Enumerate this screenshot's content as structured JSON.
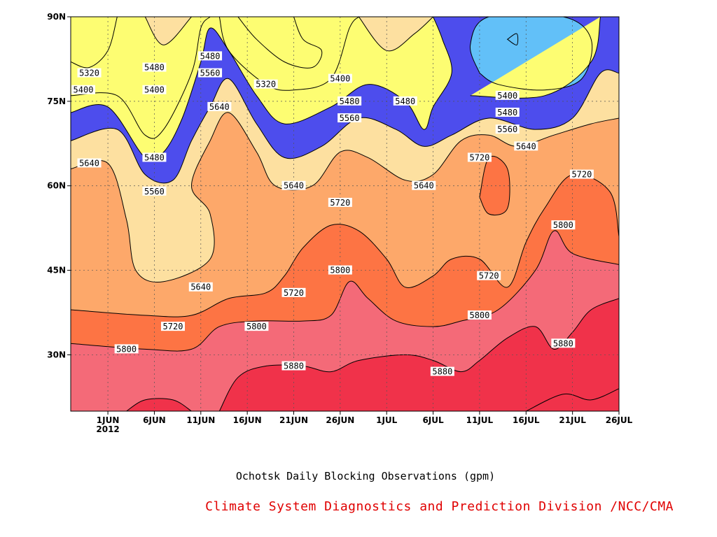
{
  "caption": "Ochotsk Daily Blocking Observations (gpm)",
  "credit": "Climate System Diagnostics and Prediction Division /NCC/CMA",
  "credit_color": "#e00000",
  "chart_data": {
    "type": "heatmap",
    "subtype": "filled-contour",
    "title": "",
    "xlabel": "",
    "ylabel": "",
    "x_ticks": [
      "1JUN\n2012",
      "6JUN",
      "11JUN",
      "16JUN",
      "21JUN",
      "26JUN",
      "1JUL",
      "6JUL",
      "11JUL",
      "16JUL",
      "21JUL",
      "26JUL"
    ],
    "y_ticks": [
      "30N",
      "45N",
      "60N",
      "75N",
      "90N"
    ],
    "xlim": [
      "2012-05-28",
      "2012-07-26"
    ],
    "ylim": [
      20,
      90
    ],
    "grid": true,
    "contour_levels": [
      5320,
      5400,
      5480,
      5560,
      5640,
      5720,
      5800,
      5880
    ],
    "fill_colors": [
      "#4d4ded",
      "#5a8fe6",
      "#62c0f8",
      "#fdfd72",
      "#fde0a0",
      "#fda86a",
      "#fd7444",
      "#f46a78",
      "#f0324a"
    ],
    "boundaries": [
      {
        "level": 5320,
        "points": [
          [
            "2012-05-28",
            82
          ],
          [
            "2012-05-30",
            81
          ],
          [
            "2012-06-01",
            84
          ],
          [
            "2012-06-02",
            90
          ]
        ]
      },
      {
        "level": 5320,
        "points": [
          [
            "2012-06-15",
            90
          ],
          [
            "2012-06-17",
            86
          ],
          [
            "2012-06-20",
            82
          ],
          [
            "2012-06-23",
            81
          ],
          [
            "2012-06-24",
            84
          ],
          [
            "2012-06-22",
            86
          ],
          [
            "2012-06-21",
            90
          ]
        ]
      },
      {
        "level": 5320,
        "points": [
          [
            "2012-07-14",
            86
          ],
          [
            "2012-07-15",
            85
          ],
          [
            "2012-07-15",
            87
          ],
          [
            "2012-07-14",
            86
          ]
        ]
      },
      {
        "level": 5400,
        "points": [
          [
            "2012-05-28",
            76
          ],
          [
            "2012-06-02",
            76
          ],
          [
            "2012-06-05",
            69
          ],
          [
            "2012-06-07",
            70
          ],
          [
            "2012-06-10",
            80
          ],
          [
            "2012-06-11",
            88
          ],
          [
            "2012-06-12",
            90
          ]
        ]
      },
      {
        "level": 5400,
        "points": [
          [
            "2012-06-13",
            90
          ],
          [
            "2012-06-14",
            84
          ],
          [
            "2012-06-18",
            78
          ],
          [
            "2012-06-21",
            77
          ],
          [
            "2012-06-25",
            79
          ],
          [
            "2012-06-27",
            88
          ],
          [
            "2012-06-28",
            90
          ]
        ]
      },
      {
        "level": 5400,
        "points": [
          [
            "2012-07-11",
            80
          ],
          [
            "2012-07-10",
            85
          ],
          [
            "2012-07-12",
            90
          ],
          [
            "2012-07-20",
            90
          ],
          [
            "2012-07-23",
            86
          ],
          [
            "2012-07-22",
            79
          ],
          [
            "2012-07-18",
            77
          ],
          [
            "2012-07-13",
            78
          ],
          [
            "2012-07-11",
            80
          ]
        ]
      },
      {
        "level": 5480,
        "points": [
          [
            "2012-05-28",
            73
          ],
          [
            "2012-06-01",
            74
          ],
          [
            "2012-06-05",
            65
          ],
          [
            "2012-06-07",
            66
          ],
          [
            "2012-06-09",
            72
          ],
          [
            "2012-06-11",
            82
          ],
          [
            "2012-06-12",
            88
          ],
          [
            "2012-06-14",
            84
          ],
          [
            "2012-06-17",
            76
          ],
          [
            "2012-06-20",
            71
          ],
          [
            "2012-06-25",
            74
          ],
          [
            "2012-06-29",
            78
          ],
          [
            "2012-07-03",
            75
          ],
          [
            "2012-07-05",
            70
          ],
          [
            "2012-07-06",
            74
          ],
          [
            "2012-07-08",
            80
          ],
          [
            "2012-07-07",
            86
          ],
          [
            "2012-07-06",
            90
          ]
        ]
      },
      {
        "level": 5480,
        "points": [
          [
            "2012-07-24",
            90
          ],
          [
            "2012-07-23",
            82
          ],
          [
            "2012-07-18",
            76
          ],
          [
            "2012-07-10",
            76
          ]
        ]
      },
      {
        "level": 5560,
        "points": [
          [
            "2012-05-28",
            68
          ],
          [
            "2012-06-02",
            70
          ],
          [
            "2012-06-05",
            62
          ],
          [
            "2012-06-08",
            61
          ],
          [
            "2012-06-10",
            68
          ],
          [
            "2012-06-12",
            74
          ],
          [
            "2012-06-14",
            79
          ],
          [
            "2012-06-17",
            71
          ],
          [
            "2012-06-20",
            65
          ],
          [
            "2012-06-24",
            67
          ],
          [
            "2012-06-28",
            72
          ],
          [
            "2012-07-02",
            70
          ],
          [
            "2012-07-05",
            67
          ],
          [
            "2012-07-08",
            69
          ],
          [
            "2012-07-12",
            72
          ],
          [
            "2012-07-17",
            70
          ],
          [
            "2012-07-21",
            72
          ],
          [
            "2012-07-24",
            80
          ],
          [
            "2012-07-26",
            80
          ]
        ]
      },
      {
        "level": 5560,
        "points": [
          [
            "2012-06-05",
            90
          ],
          [
            "2012-06-07",
            85
          ],
          [
            "2012-06-10",
            90
          ]
        ]
      },
      {
        "level": 5560,
        "points": [
          [
            "2012-06-28",
            90
          ],
          [
            "2012-07-01",
            84
          ],
          [
            "2012-07-04",
            87
          ],
          [
            "2012-07-06",
            90
          ]
        ]
      },
      {
        "level": 5640,
        "points": [
          [
            "2012-05-28",
            63
          ],
          [
            "2012-06-01",
            64
          ],
          [
            "2012-06-03",
            54
          ],
          [
            "2012-06-04",
            45
          ],
          [
            "2012-06-07",
            43
          ],
          [
            "2012-06-12",
            47
          ],
          [
            "2012-06-12",
            55
          ],
          [
            "2012-06-10",
            60
          ],
          [
            "2012-06-12",
            68
          ],
          [
            "2012-06-14",
            73
          ],
          [
            "2012-06-17",
            66
          ],
          [
            "2012-06-19",
            60
          ],
          [
            "2012-06-23",
            60
          ],
          [
            "2012-06-26",
            66
          ],
          [
            "2012-06-29",
            65
          ],
          [
            "2012-07-03",
            61
          ],
          [
            "2012-07-06",
            62
          ],
          [
            "2012-07-09",
            68
          ],
          [
            "2012-07-12",
            69
          ],
          [
            "2012-07-15",
            67
          ],
          [
            "2012-07-19",
            69
          ],
          [
            "2012-07-23",
            71
          ],
          [
            "2012-07-26",
            72
          ]
        ]
      },
      {
        "level": 5720,
        "points": [
          [
            "2012-05-28",
            38
          ],
          [
            "2012-06-05",
            37
          ],
          [
            "2012-06-10",
            37
          ],
          [
            "2012-06-14",
            40
          ],
          [
            "2012-06-18",
            41
          ],
          [
            "2012-06-20",
            44
          ],
          [
            "2012-06-22",
            49
          ],
          [
            "2012-06-25",
            53
          ],
          [
            "2012-06-28",
            52
          ],
          [
            "2012-07-01",
            47
          ],
          [
            "2012-07-03",
            42
          ],
          [
            "2012-07-06",
            44
          ],
          [
            "2012-07-08",
            47
          ],
          [
            "2012-07-11",
            47
          ],
          [
            "2012-07-14",
            42
          ],
          [
            "2012-07-16",
            50
          ],
          [
            "2012-07-18",
            56
          ],
          [
            "2012-07-21",
            62
          ],
          [
            "2012-07-25",
            59
          ],
          [
            "2012-07-26",
            51
          ]
        ]
      },
      {
        "level": 5720,
        "points": [
          [
            "2012-07-11",
            58
          ],
          [
            "2012-07-12",
            65
          ],
          [
            "2012-07-14",
            63
          ],
          [
            "2012-07-14",
            56
          ],
          [
            "2012-07-12",
            55
          ],
          [
            "2012-07-11",
            58
          ]
        ]
      },
      {
        "level": 5800,
        "points": [
          [
            "2012-05-28",
            32
          ],
          [
            "2012-06-05",
            31
          ],
          [
            "2012-06-10",
            31
          ],
          [
            "2012-06-13",
            35
          ],
          [
            "2012-06-17",
            36
          ],
          [
            "2012-06-22",
            36
          ],
          [
            "2012-06-25",
            37
          ],
          [
            "2012-06-27",
            43
          ],
          [
            "2012-06-29",
            40
          ],
          [
            "2012-07-02",
            36
          ],
          [
            "2012-07-06",
            35
          ],
          [
            "2012-07-09",
            36
          ],
          [
            "2012-07-13",
            38
          ],
          [
            "2012-07-17",
            45
          ],
          [
            "2012-07-19",
            52
          ],
          [
            "2012-07-21",
            48
          ],
          [
            "2012-07-26",
            46
          ]
        ]
      },
      {
        "level": 5880,
        "points": [
          [
            "2012-06-03",
            20
          ],
          [
            "2012-06-05",
            22
          ],
          [
            "2012-06-08",
            22
          ],
          [
            "2012-06-10",
            20
          ]
        ]
      },
      {
        "level": 5880,
        "points": [
          [
            "2012-06-13",
            20
          ],
          [
            "2012-06-15",
            26
          ],
          [
            "2012-06-18",
            28
          ],
          [
            "2012-06-22",
            28
          ],
          [
            "2012-06-25",
            27
          ],
          [
            "2012-06-28",
            29
          ],
          [
            "2012-07-03",
            30
          ],
          [
            "2012-07-06",
            29
          ],
          [
            "2012-07-09",
            27
          ],
          [
            "2012-07-11",
            29
          ],
          [
            "2012-07-14",
            33
          ],
          [
            "2012-07-17",
            35
          ],
          [
            "2012-07-19",
            31
          ],
          [
            "2012-07-21",
            34
          ],
          [
            "2012-07-23",
            38
          ],
          [
            "2012-07-26",
            40
          ]
        ]
      },
      {
        "level": 5880,
        "points": [
          [
            "2012-07-16",
            20
          ],
          [
            "2012-07-20",
            23
          ],
          [
            "2012-07-23",
            22
          ],
          [
            "2012-07-26",
            24
          ]
        ]
      }
    ],
    "contour_labels": [
      {
        "text": "5320",
        "x": "2012-05-30",
        "y": 80
      },
      {
        "text": "5400",
        "x": "2012-05-28",
        "y": 77
      },
      {
        "text": "5480",
        "x": "2012-06-06",
        "y": 81
      },
      {
        "text": "5400",
        "x": "2012-06-06",
        "y": 77
      },
      {
        "text": "5480",
        "x": "2012-06-12",
        "y": 83
      },
      {
        "text": "5560",
        "x": "2012-06-12",
        "y": 80
      },
      {
        "text": "5640",
        "x": "2012-06-13",
        "y": 74
      },
      {
        "text": "5320",
        "x": "2012-06-18",
        "y": 78
      },
      {
        "text": "5400",
        "x": "2012-06-26",
        "y": 79
      },
      {
        "text": "5480",
        "x": "2012-06-27",
        "y": 75
      },
      {
        "text": "5560",
        "x": "2012-06-27",
        "y": 72
      },
      {
        "text": "5480",
        "x": "2012-07-03",
        "y": 75
      },
      {
        "text": "5400",
        "x": "2012-07-14",
        "y": 76
      },
      {
        "text": "5480",
        "x": "2012-07-14",
        "y": 73
      },
      {
        "text": "5560",
        "x": "2012-07-14",
        "y": 70
      },
      {
        "text": "5640",
        "x": "2012-07-16",
        "y": 67
      },
      {
        "text": "5720",
        "x": "2012-07-11",
        "y": 65
      },
      {
        "text": "5640",
        "x": "2012-05-30",
        "y": 64
      },
      {
        "text": "5480",
        "x": "2012-06-06",
        "y": 65
      },
      {
        "text": "5560",
        "x": "2012-06-06",
        "y": 59
      },
      {
        "text": "5640",
        "x": "2012-06-21",
        "y": 60
      },
      {
        "text": "5640",
        "x": "2012-07-05",
        "y": 60
      },
      {
        "text": "5720",
        "x": "2012-07-22",
        "y": 62
      },
      {
        "text": "5720",
        "x": "2012-06-26",
        "y": 57
      },
      {
        "text": "5800",
        "x": "2012-07-20",
        "y": 53
      },
      {
        "text": "5800",
        "x": "2012-06-26",
        "y": 45
      },
      {
        "text": "5640",
        "x": "2012-06-11",
        "y": 42
      },
      {
        "text": "5720",
        "x": "2012-06-21",
        "y": 41
      },
      {
        "text": "5720",
        "x": "2012-07-12",
        "y": 44
      },
      {
        "text": "5800",
        "x": "2012-07-11",
        "y": 37
      },
      {
        "text": "5720",
        "x": "2012-06-08",
        "y": 35
      },
      {
        "text": "5800",
        "x": "2012-06-17",
        "y": 35
      },
      {
        "text": "5800",
        "x": "2012-06-03",
        "y": 31
      },
      {
        "text": "5880",
        "x": "2012-07-20",
        "y": 32
      },
      {
        "text": "5880",
        "x": "2012-06-21",
        "y": 28
      },
      {
        "text": "5880",
        "x": "2012-07-07",
        "y": 27
      }
    ]
  }
}
